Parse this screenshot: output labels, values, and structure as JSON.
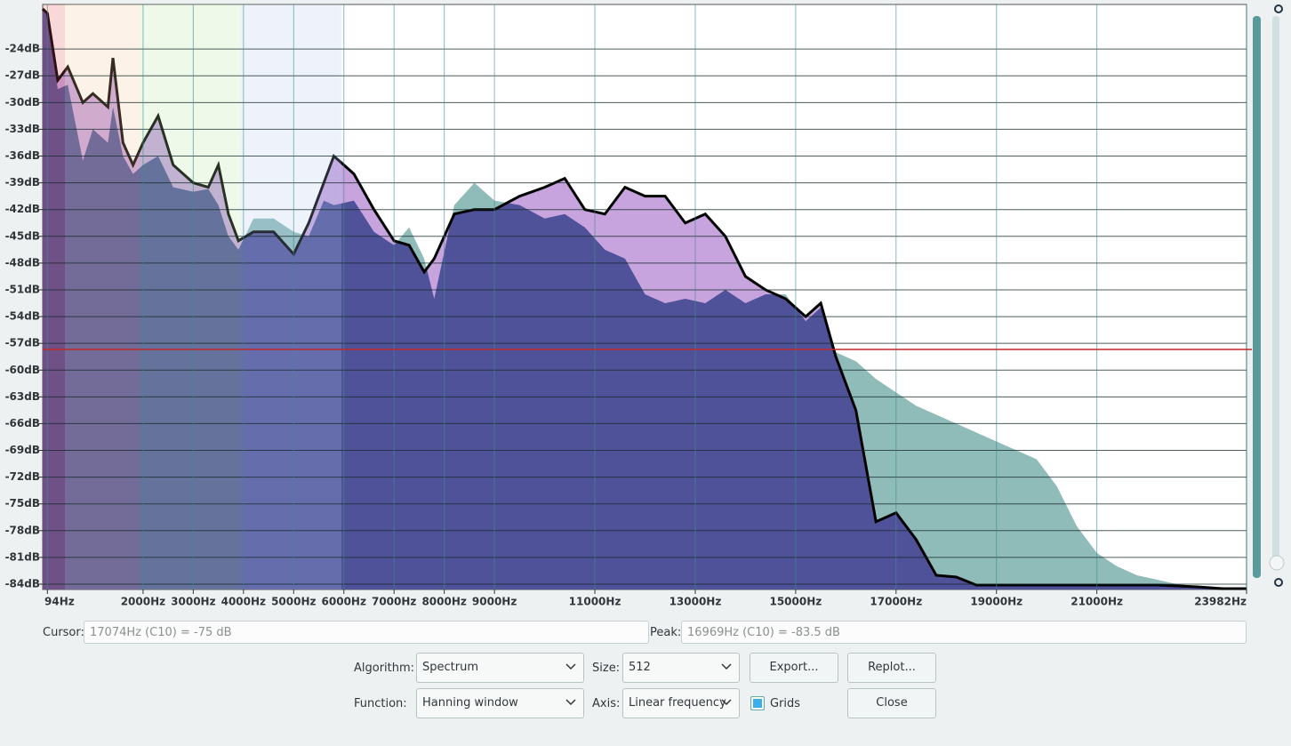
{
  "chart_data": {
    "type": "area",
    "x": [
      0,
      94,
      300,
      500,
      800,
      1000,
      1300,
      1400,
      1600,
      1800,
      2000,
      2300,
      2600,
      3000,
      3300,
      3500,
      3700,
      3900,
      4200,
      4600,
      5000,
      5300,
      5600,
      5800,
      6200,
      6600,
      7000,
      7300,
      7600,
      7800,
      8200,
      8600,
      9000,
      9500,
      10000,
      10400,
      10800,
      11200,
      11600,
      12000,
      12400,
      12800,
      13200,
      13600,
      14000,
      14400,
      14800,
      15200,
      15500,
      15800,
      16200,
      16600,
      17000,
      17400,
      17800,
      18200,
      18600,
      19000,
      19400,
      19800,
      20200,
      20600,
      21000,
      21400,
      21800,
      22200,
      22600,
      23000,
      23500,
      23982
    ],
    "series": [
      {
        "color": "#8fbbb9",
        "values": [
          -19.5,
          -20,
          -28.5,
          -28,
          -36.5,
          -33,
          -34.5,
          -30.5,
          -36,
          -38,
          -37,
          -36,
          -39.5,
          -40,
          -39.7,
          -41.5,
          -45,
          -46.5,
          -43,
          -43,
          -44.5,
          -45,
          -41,
          -41.5,
          -41,
          -44.5,
          -46,
          -44,
          -47.5,
          -52,
          -41.5,
          -39,
          -41,
          -41.5,
          -43,
          -42.5,
          -44,
          -46.5,
          -47.5,
          -51.5,
          -52.5,
          -52,
          -52.5,
          -51,
          -52.5,
          -51.5,
          -51.5,
          -54.5,
          -53,
          -58,
          -59,
          -61,
          -62.5,
          -64,
          -65,
          -66,
          -67,
          -68,
          -69,
          -70,
          -73,
          -77.5,
          -80.5,
          -82,
          -83,
          -83.5,
          -84,
          -84.2,
          -84.5,
          -84.5
        ]
      },
      {
        "color": "#c7a4de",
        "line_color": "#000000",
        "values": [
          -19.5,
          -20,
          -27.5,
          -26,
          -30,
          -29,
          -30.5,
          -25,
          -34.5,
          -37,
          -34.5,
          -31.5,
          -37,
          -39,
          -39.5,
          -37,
          -42.5,
          -45.5,
          -44.5,
          -44.5,
          -47,
          -43.5,
          -39,
          -36,
          -38,
          -42,
          -45.5,
          -46,
          -49,
          -47.5,
          -42.5,
          -42,
          -42,
          -40.5,
          -39.5,
          -38.5,
          -42,
          -42.5,
          -39.5,
          -40.5,
          -40.5,
          -43.5,
          -42.5,
          -45,
          -49.5,
          -51,
          -52,
          -54,
          -52.5,
          -58.5,
          -64.5,
          -77,
          -76,
          -79,
          -83,
          -83.2,
          -84.1,
          -84.1,
          -84.1,
          -84.1,
          -84.1,
          -84.1,
          -84.1,
          -84.1,
          -84.1,
          -84.1,
          -84.2,
          -84.3,
          -84.5,
          -84.5
        ]
      }
    ],
    "overlap_color": "#4f5299",
    "xlim": [
      0,
      23982
    ],
    "xticks": [
      {
        "value": 94,
        "label": "94Hz"
      },
      {
        "value": 2000,
        "label": "2000Hz"
      },
      {
        "value": 3000,
        "label": "3000Hz"
      },
      {
        "value": 4000,
        "label": "4000Hz"
      },
      {
        "value": 5000,
        "label": "5000Hz"
      },
      {
        "value": 6000,
        "label": "6000Hz"
      },
      {
        "value": 7000,
        "label": "7000Hz"
      },
      {
        "value": 8000,
        "label": "8000Hz"
      },
      {
        "value": 9000,
        "label": "9000Hz"
      },
      {
        "value": 11000,
        "label": "11000Hz"
      },
      {
        "value": 13000,
        "label": "13000Hz"
      },
      {
        "value": 15000,
        "label": "15000Hz"
      },
      {
        "value": 17000,
        "label": "17000Hz"
      },
      {
        "value": 19000,
        "label": "19000Hz"
      },
      {
        "value": 21000,
        "label": "21000Hz"
      },
      {
        "value": 23982,
        "label": "23982Hz"
      }
    ],
    "ylim": [
      -84.6,
      -19
    ],
    "yticks": [
      {
        "value": -24,
        "label": "-24dB"
      },
      {
        "value": -27,
        "label": "-27dB"
      },
      {
        "value": -30,
        "label": "-30dB"
      },
      {
        "value": -33,
        "label": "-33dB"
      },
      {
        "value": -36,
        "label": "-36dB"
      },
      {
        "value": -39,
        "label": "-39dB"
      },
      {
        "value": -42,
        "label": "-42dB"
      },
      {
        "value": -45,
        "label": "-45dB"
      },
      {
        "value": -48,
        "label": "-48dB"
      },
      {
        "value": -51,
        "label": "-51dB"
      },
      {
        "value": -54,
        "label": "-54dB"
      },
      {
        "value": -57,
        "label": "-57dB"
      },
      {
        "value": -60,
        "label": "-60dB"
      },
      {
        "value": -63,
        "label": "-63dB"
      },
      {
        "value": -66,
        "label": "-66dB"
      },
      {
        "value": -69,
        "label": "-69dB"
      },
      {
        "value": -72,
        "label": "-72dB"
      },
      {
        "value": -75,
        "label": "-75dB"
      },
      {
        "value": -78,
        "label": "-78dB"
      },
      {
        "value": -81,
        "label": "-81dB"
      },
      {
        "value": -84,
        "label": "-84dB"
      }
    ],
    "grid": true
  },
  "controls": {
    "cursor_label": "Cursor:",
    "cursor_value": "17074Hz (C10) = -75 dB",
    "peak_label": "Peak:",
    "peak_value": "16969Hz (C10) = -83.5 dB",
    "algorithm_label": "Algorithm:",
    "algorithm": "Spectrum",
    "size_label": "Size:",
    "size": "512",
    "export": "Export...",
    "replot": "Replot...",
    "function_label": "Function:",
    "function": "Hanning window",
    "axis_label": "Axis:",
    "axis": "Linear frequency",
    "grids_label": "Grids",
    "grids_checked": true,
    "close": "Close"
  }
}
